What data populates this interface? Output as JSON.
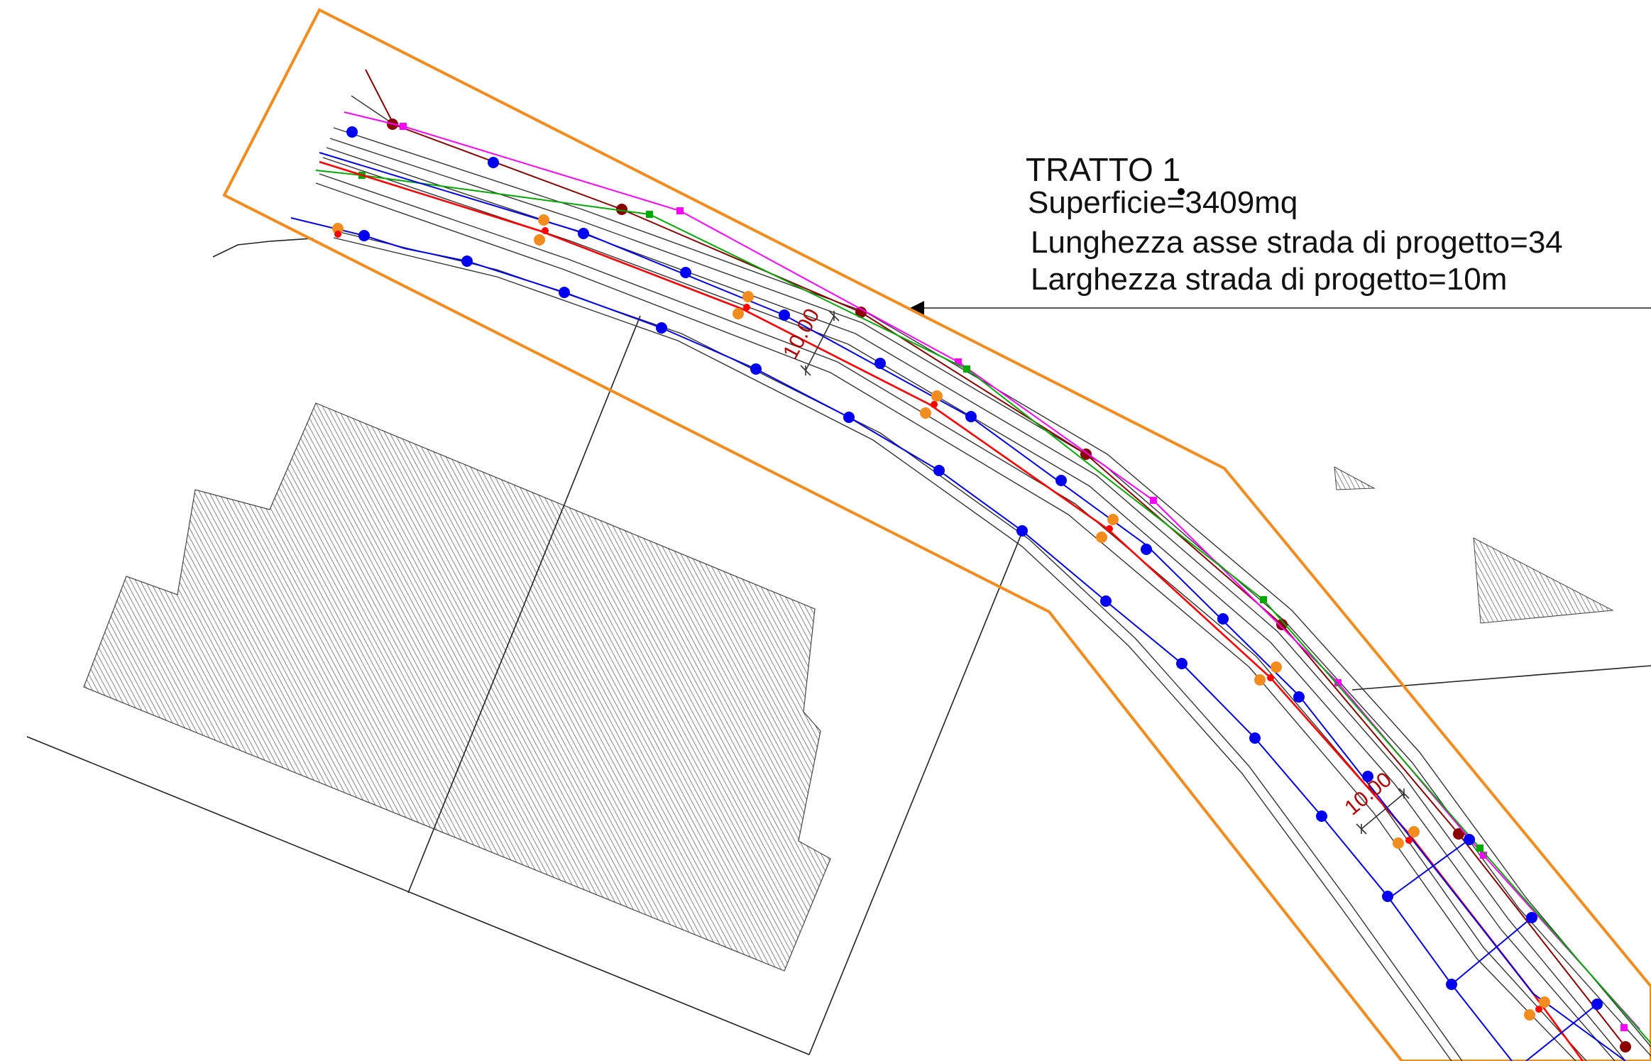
{
  "annotation": {
    "title": "TRATTO 1",
    "area": "Superficie=3409mq",
    "axis_length": "Lunghezza asse strada di progetto=34",
    "road_width": "Larghezza strada di progetto=10m"
  },
  "dimensions": {
    "upper": "10.00",
    "lower": "10.00"
  },
  "colors": {
    "boundary": "#f28c1e",
    "red_line": "#ff0000",
    "blue_line": "#0000ee",
    "green_line": "#00aa00",
    "magenta_line": "#ff00ff",
    "darkred_line": "#8b0000",
    "orange_marker": "#f28c1e",
    "hatch": "#555555",
    "dimension_text": "#b30000"
  }
}
